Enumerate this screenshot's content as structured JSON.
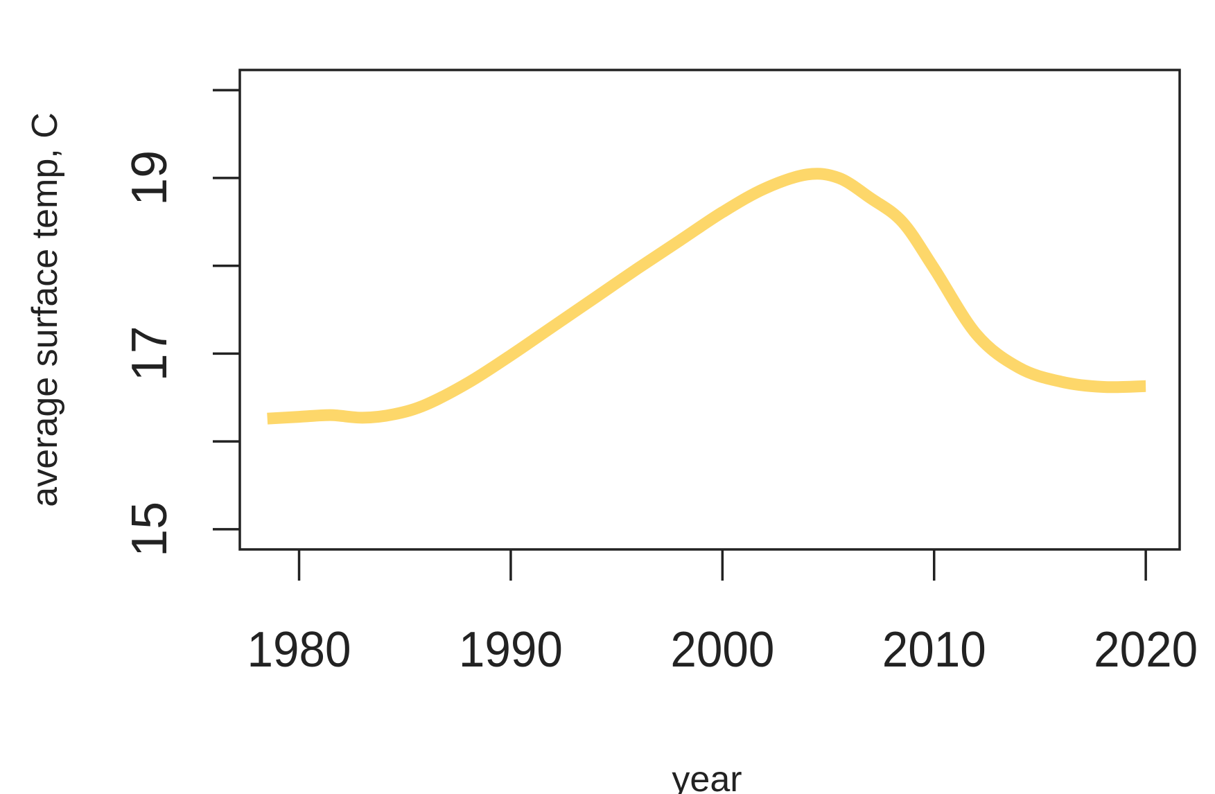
{
  "chart_data": {
    "type": "line",
    "title": "",
    "xlabel": "year",
    "ylabel": "average surface temp, C",
    "xlim": [
      1977.2,
      2021.6
    ],
    "ylim": [
      14.77,
      20.23
    ],
    "x_ticks": [
      1980,
      1990,
      2000,
      2010,
      2020
    ],
    "x_tick_labels": [
      "1980",
      "1990",
      "2000",
      "2010",
      "2020"
    ],
    "y_ticks": [
      15,
      16,
      17,
      18,
      19,
      20
    ],
    "y_tick_labels": [
      "15",
      "",
      "17",
      "",
      "19",
      ""
    ],
    "grid": false,
    "legend": "none",
    "series": [
      {
        "color": "#FDD76A",
        "x": [
          1978.5,
          1980,
          1981.5,
          1983,
          1984.5,
          1986,
          1988,
          1990,
          1992,
          1994,
          1996,
          1998,
          2000,
          2002,
          2004,
          2005.5,
          2007,
          2008.5,
          2010,
          2012,
          2014,
          2016,
          2018,
          2020
        ],
        "y": [
          16.26,
          16.28,
          16.3,
          16.27,
          16.31,
          16.42,
          16.67,
          16.98,
          17.31,
          17.64,
          17.97,
          18.29,
          18.61,
          18.88,
          19.04,
          19.0,
          18.77,
          18.5,
          17.97,
          17.22,
          16.84,
          16.68,
          16.62,
          16.63
        ]
      }
    ]
  }
}
